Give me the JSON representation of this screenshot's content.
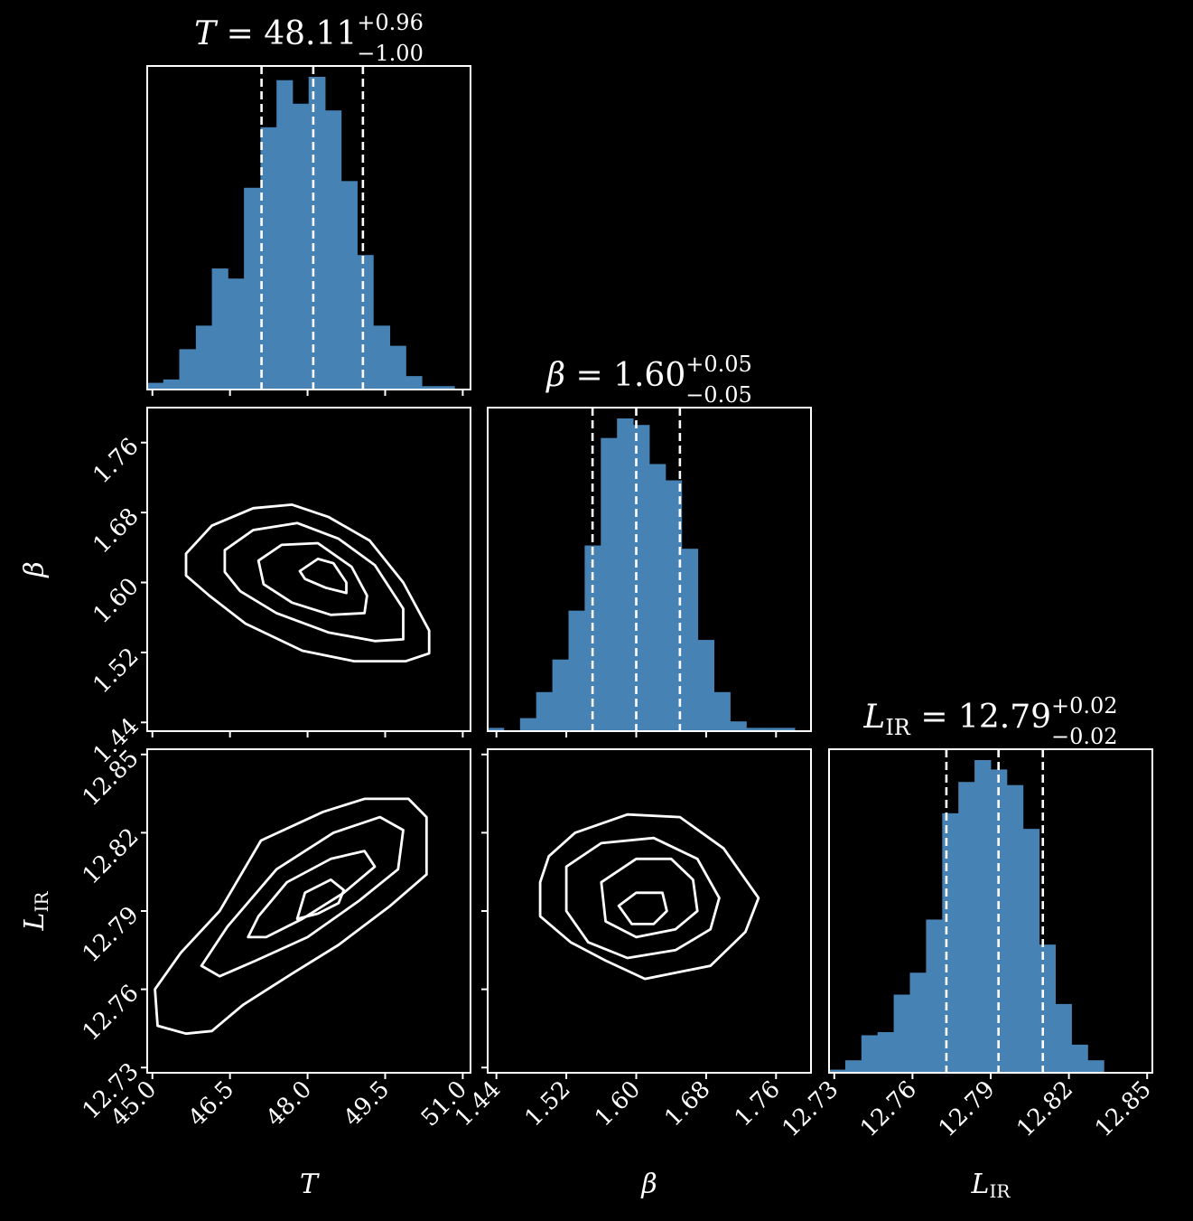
{
  "figure": {
    "background": "#000000",
    "foreground": "#ffffff",
    "hist_color": "#4682b4",
    "contour_color": "#ffffff"
  },
  "chart_data": {
    "type": "corner",
    "parameters": [
      {
        "key": "T",
        "axis_label": "T",
        "title_lhs": "T",
        "title_sub": "",
        "title_value": "48.11",
        "title_plus": "+0.96",
        "title_minus": "−1.00",
        "range": [
          44.9,
          51.15
        ],
        "ticks": [
          "45.0",
          "46.5",
          "48.0",
          "49.5",
          "51.0"
        ],
        "tick_values": [
          45.0,
          46.5,
          48.0,
          49.5,
          51.0
        ],
        "quantiles": [
          47.11,
          48.11,
          49.07
        ],
        "histogram": {
          "edges": [
            44.9,
            45.21,
            45.52,
            45.84,
            46.15,
            46.46,
            46.77,
            47.09,
            47.4,
            47.71,
            48.02,
            48.34,
            48.65,
            48.96,
            49.27,
            49.59,
            49.9,
            50.21,
            50.52,
            50.84,
            51.15
          ],
          "counts": [
            0.02,
            0.03,
            0.12,
            0.19,
            0.36,
            0.33,
            0.6,
            0.78,
            0.92,
            0.85,
            0.93,
            0.83,
            0.62,
            0.4,
            0.19,
            0.13,
            0.04,
            0.01,
            0.01,
            0.0
          ]
        }
      },
      {
        "key": "beta",
        "axis_label": "β",
        "title_lhs": "β",
        "title_sub": "",
        "title_value": "1.60",
        "title_plus": "+0.05",
        "title_minus": "−0.05",
        "range": [
          1.43,
          1.8
        ],
        "ticks": [
          "1.44",
          "1.52",
          "1.60",
          "1.68",
          "1.76"
        ],
        "tick_values": [
          1.44,
          1.52,
          1.6,
          1.68,
          1.76
        ],
        "quantiles": [
          1.55,
          1.6,
          1.65
        ],
        "histogram": {
          "edges": [
            1.43,
            1.4485,
            1.467,
            1.4855,
            1.504,
            1.5225,
            1.541,
            1.5595,
            1.578,
            1.5965,
            1.615,
            1.6335,
            1.652,
            1.6705,
            1.689,
            1.7075,
            1.726,
            1.7445,
            1.763,
            1.7815,
            1.8
          ],
          "counts": [
            0.01,
            0.0,
            0.04,
            0.12,
            0.22,
            0.37,
            0.57,
            0.9,
            0.96,
            0.94,
            0.82,
            0.77,
            0.56,
            0.28,
            0.12,
            0.03,
            0.01,
            0.01,
            0.01,
            0.0
          ]
        }
      },
      {
        "key": "L_IR",
        "axis_label": "L",
        "axis_sub": "IR",
        "title_lhs": "L",
        "title_sub": "IR",
        "title_value": "12.79",
        "title_plus": "+0.02",
        "title_minus": "−0.02",
        "range": [
          12.728,
          12.852
        ],
        "ticks": [
          "12.73",
          "12.76",
          "12.79",
          "12.82",
          "12.85"
        ],
        "tick_values": [
          12.73,
          12.76,
          12.79,
          12.82,
          12.85
        ],
        "quantiles": [
          12.773,
          12.793,
          12.81
        ],
        "histogram": {
          "edges": [
            12.728,
            12.7342,
            12.7404,
            12.7466,
            12.7528,
            12.759,
            12.7652,
            12.7714,
            12.7776,
            12.7838,
            12.79,
            12.7962,
            12.8024,
            12.8086,
            12.8148,
            12.821,
            12.8272,
            12.8334,
            12.8396,
            12.8458,
            12.852
          ],
          "counts": [
            0.01,
            0.04,
            0.12,
            0.13,
            0.25,
            0.32,
            0.49,
            0.83,
            0.93,
            1.0,
            0.97,
            0.92,
            0.78,
            0.41,
            0.22,
            0.09,
            0.04,
            0.0,
            0.0,
            0.0
          ]
        }
      }
    ],
    "contours": {
      "T_beta": [
        [
          [
            45.65,
            1.633
          ],
          [
            46.15,
            1.665
          ],
          [
            46.95,
            1.685
          ],
          [
            47.7,
            1.689
          ],
          [
            48.4,
            1.675
          ],
          [
            49.2,
            1.648
          ],
          [
            49.85,
            1.6
          ],
          [
            50.35,
            1.545
          ],
          [
            50.35,
            1.519
          ],
          [
            49.9,
            1.51
          ],
          [
            48.9,
            1.51
          ],
          [
            47.9,
            1.522
          ],
          [
            46.8,
            1.553
          ],
          [
            46.1,
            1.585
          ],
          [
            45.65,
            1.608
          ]
        ],
        [
          [
            46.4,
            1.637
          ],
          [
            46.95,
            1.66
          ],
          [
            47.8,
            1.668
          ],
          [
            48.6,
            1.65
          ],
          [
            49.3,
            1.62
          ],
          [
            49.85,
            1.57
          ],
          [
            49.85,
            1.535
          ],
          [
            49.3,
            1.533
          ],
          [
            48.4,
            1.543
          ],
          [
            47.4,
            1.565
          ],
          [
            46.7,
            1.59
          ],
          [
            46.4,
            1.612
          ]
        ],
        [
          [
            47.05,
            1.625
          ],
          [
            47.5,
            1.643
          ],
          [
            48.2,
            1.645
          ],
          [
            48.85,
            1.618
          ],
          [
            49.15,
            1.585
          ],
          [
            49.1,
            1.565
          ],
          [
            48.45,
            1.563
          ],
          [
            47.7,
            1.577
          ],
          [
            47.15,
            1.598
          ]
        ],
        [
          [
            47.85,
            1.613
          ],
          [
            48.2,
            1.627
          ],
          [
            48.5,
            1.622
          ],
          [
            48.75,
            1.6
          ],
          [
            48.75,
            1.588
          ],
          [
            48.35,
            1.594
          ],
          [
            47.95,
            1.604
          ]
        ]
      ],
      "T_L": [
        [
          [
            47.1,
            12.817
          ],
          [
            48.3,
            12.828
          ],
          [
            49.1,
            12.833
          ],
          [
            49.95,
            12.833
          ],
          [
            50.3,
            12.826
          ],
          [
            50.3,
            12.804
          ],
          [
            49.6,
            12.792
          ],
          [
            48.6,
            12.777
          ],
          [
            47.7,
            12.766
          ],
          [
            46.75,
            12.754
          ],
          [
            46.15,
            12.744
          ],
          [
            45.65,
            12.743
          ],
          [
            45.1,
            12.746
          ],
          [
            45.05,
            12.76
          ],
          [
            45.55,
            12.774
          ],
          [
            46.3,
            12.79
          ]
        ],
        [
          [
            47.4,
            12.806
          ],
          [
            48.5,
            12.82
          ],
          [
            49.4,
            12.826
          ],
          [
            49.85,
            12.821
          ],
          [
            49.75,
            12.806
          ],
          [
            49.0,
            12.794
          ],
          [
            48.0,
            12.78
          ],
          [
            47.0,
            12.771
          ],
          [
            46.3,
            12.765
          ],
          [
            45.95,
            12.769
          ],
          [
            46.45,
            12.784
          ]
        ],
        [
          [
            47.6,
            12.801
          ],
          [
            48.45,
            12.81
          ],
          [
            49.1,
            12.813
          ],
          [
            49.3,
            12.807
          ],
          [
            48.7,
            12.797
          ],
          [
            47.9,
            12.787
          ],
          [
            47.2,
            12.78
          ],
          [
            46.85,
            12.78
          ],
          [
            47.05,
            12.788
          ]
        ],
        [
          [
            47.95,
            12.797
          ],
          [
            48.45,
            12.802
          ],
          [
            48.7,
            12.798
          ],
          [
            48.6,
            12.793
          ],
          [
            48.2,
            12.789
          ],
          [
            47.8,
            12.787
          ]
        ]
      ],
      "beta_L": [
        [
          [
            1.5,
            12.811
          ],
          [
            1.53,
            12.82
          ],
          [
            1.59,
            12.827
          ],
          [
            1.65,
            12.826
          ],
          [
            1.7,
            12.814
          ],
          [
            1.74,
            12.795
          ],
          [
            1.725,
            12.782
          ],
          [
            1.685,
            12.769
          ],
          [
            1.61,
            12.764
          ],
          [
            1.565,
            12.771
          ],
          [
            1.525,
            12.778
          ],
          [
            1.49,
            12.788
          ],
          [
            1.49,
            12.801
          ]
        ],
        [
          [
            1.52,
            12.807
          ],
          [
            1.56,
            12.816
          ],
          [
            1.62,
            12.818
          ],
          [
            1.67,
            12.81
          ],
          [
            1.695,
            12.795
          ],
          [
            1.685,
            12.783
          ],
          [
            1.645,
            12.775
          ],
          [
            1.59,
            12.772
          ],
          [
            1.545,
            12.778
          ],
          [
            1.52,
            12.79
          ]
        ],
        [
          [
            1.56,
            12.801
          ],
          [
            1.6,
            12.81
          ],
          [
            1.64,
            12.81
          ],
          [
            1.665,
            12.802
          ],
          [
            1.67,
            12.79
          ],
          [
            1.645,
            12.783
          ],
          [
            1.6,
            12.78
          ],
          [
            1.565,
            12.786
          ]
        ],
        [
          [
            1.58,
            12.792
          ],
          [
            1.6,
            12.797
          ],
          [
            1.63,
            12.797
          ],
          [
            1.635,
            12.79
          ],
          [
            1.62,
            12.785
          ],
          [
            1.595,
            12.785
          ]
        ]
      ]
    }
  }
}
